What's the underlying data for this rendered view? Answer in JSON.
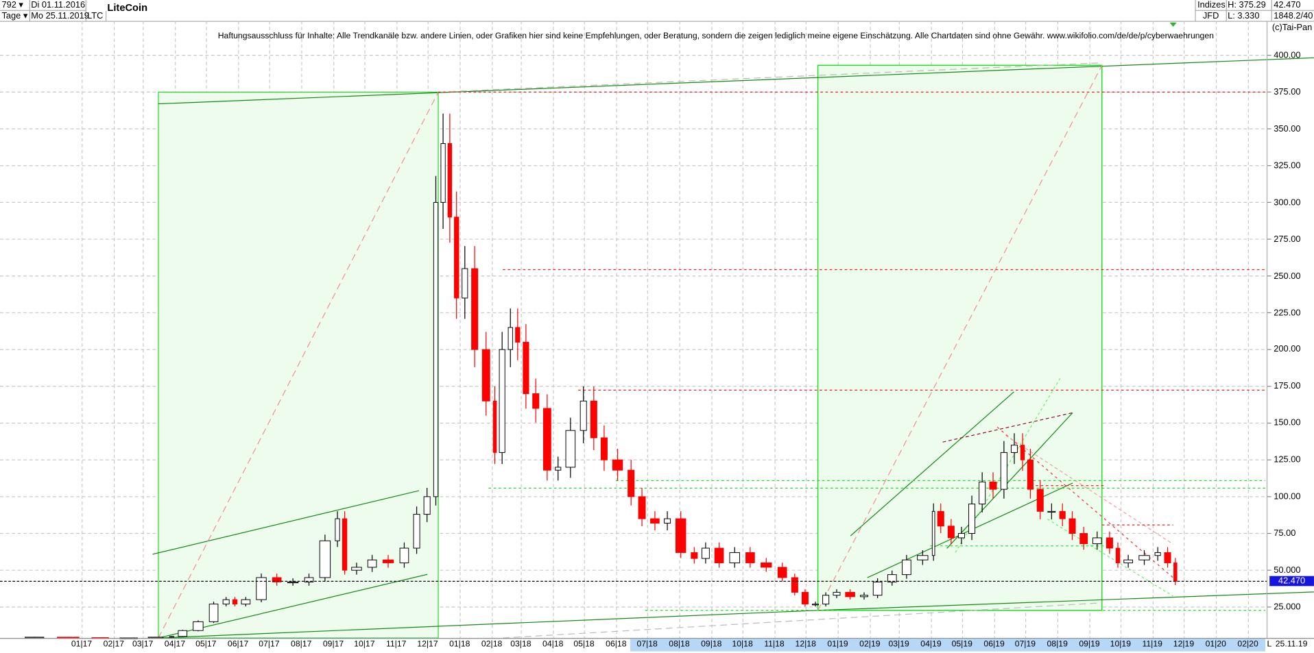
{
  "header": {
    "count_select": "792 ▾",
    "range_unit_select": "Tage ▾",
    "start_date": "Di 01.11.2016",
    "end_date": "Mo 25.11.2019",
    "symbol": "LTC",
    "title": "LiteCoin",
    "market": "Indizes",
    "broker": "JFD",
    "high": "H: 375.29",
    "low": "L: 3.330",
    "last": "42.470",
    "extra": "1848.2/40"
  },
  "disclaimer": "Haftungsausschluss für Inhalte: Alle Trendkanäle bzw. andere Linien, oder Grafiken hier sind keine Empfehlungen, oder Beratung, sondern die zeigen lediglich meine eigene Einschätzung. Alle Chartdaten sind ohne Gewähr.  www.wikifolio.com/de/de/p/cyberwaehrungen",
  "copyright": "(c)Tai-Pan",
  "axis_end_marker": "L",
  "axis_end_date": "25.11.19",
  "colors": {
    "up": "#000000",
    "down": "#ff0000",
    "box_fill": "#eefcee",
    "box_stroke": "#22dd22",
    "trend": "#138a13",
    "highlight": "#b7d7f7",
    "current_label": "#1515e0"
  },
  "chart_data": {
    "type": "candlestick",
    "title": "LiteCoin",
    "ylim": [
      0,
      410
    ],
    "grid": true,
    "current_value": "42.470",
    "ytick_labels": [
      "400.00",
      "375.00",
      "350.00",
      "325.00",
      "300.00",
      "275.00",
      "250.00",
      "225.00",
      "200.00",
      "175.00",
      "150.00",
      "125.00",
      "100.00",
      "75.00",
      "50.000",
      "25.000"
    ],
    "ytick_values": [
      400,
      375,
      350,
      325,
      300,
      275,
      250,
      225,
      200,
      175,
      150,
      125,
      100,
      75,
      50,
      25
    ],
    "xtick_labels": [
      "01|17",
      "02|17",
      "03|17",
      "04|17",
      "05|17",
      "06|17",
      "07|17",
      "08|17",
      "09|17",
      "10|17",
      "11|17",
      "12|17",
      "01|18",
      "02|18",
      "03|18",
      "04|18",
      "05|18",
      "06|18",
      "07|18",
      "08|18",
      "09|18",
      "10|18",
      "11|18",
      "12|18",
      "01|19",
      "02|19",
      "03|19",
      "04|19",
      "05|19",
      "06|19",
      "07|19",
      "08|19",
      "09|19",
      "10|19",
      "11|19",
      "12|19",
      "01|20",
      "02|20"
    ],
    "xtick_dates": [
      "2017-01-01",
      "2017-02-01",
      "2017-03-01",
      "2017-04-01",
      "2017-05-01",
      "2017-06-01",
      "2017-07-01",
      "2017-08-01",
      "2017-09-01",
      "2017-10-01",
      "2017-11-01",
      "2017-12-01",
      "2018-01-01",
      "2018-02-01",
      "2018-03-01",
      "2018-04-01",
      "2018-05-01",
      "2018-06-01",
      "2018-07-01",
      "2018-08-01",
      "2018-09-01",
      "2018-10-01",
      "2018-11-01",
      "2018-12-01",
      "2019-01-01",
      "2019-02-01",
      "2019-03-01",
      "2019-04-01",
      "2019-05-01",
      "2019-06-01",
      "2019-07-01",
      "2019-08-01",
      "2019-09-01",
      "2019-10-01",
      "2019-11-01",
      "2019-12-01",
      "2020-01-01",
      "2020-02-01"
    ],
    "dates": [
      "2016-11-01",
      "2016-12-01",
      "2017-01-05",
      "2017-02-01",
      "2017-03-01",
      "2017-03-25",
      "2017-04-01",
      "2017-04-15",
      "2017-05-01",
      "2017-05-15",
      "2017-05-25",
      "2017-06-01",
      "2017-06-15",
      "2017-07-01",
      "2017-07-15",
      "2017-08-01",
      "2017-08-15",
      "2017-09-01",
      "2017-09-08",
      "2017-09-15",
      "2017-10-01",
      "2017-10-15",
      "2017-11-01",
      "2017-11-15",
      "2017-11-25",
      "2017-12-05",
      "2017-12-12",
      "2017-12-19",
      "2017-12-25",
      "2018-01-01",
      "2018-01-10",
      "2018-01-20",
      "2018-02-01",
      "2018-02-06",
      "2018-02-15",
      "2018-02-22",
      "2018-03-01",
      "2018-03-10",
      "2018-03-20",
      "2018-04-01",
      "2018-04-10",
      "2018-04-25",
      "2018-05-05",
      "2018-05-15",
      "2018-05-25",
      "2018-06-10",
      "2018-06-20",
      "2018-07-01",
      "2018-07-15",
      "2018-07-25",
      "2018-08-10",
      "2018-08-20",
      "2018-09-01",
      "2018-09-15",
      "2018-10-01",
      "2018-10-15",
      "2018-11-01",
      "2018-11-15",
      "2018-11-25",
      "2018-12-05",
      "2018-12-15",
      "2018-12-25",
      "2019-01-05",
      "2019-01-20",
      "2019-02-01",
      "2019-02-15",
      "2019-03-01",
      "2019-03-15",
      "2019-04-01",
      "2019-04-05",
      "2019-04-15",
      "2019-04-25",
      "2019-05-05",
      "2019-05-15",
      "2019-05-25",
      "2019-06-05",
      "2019-06-15",
      "2019-06-25",
      "2019-07-01",
      "2019-07-10",
      "2019-07-20",
      "2019-08-01",
      "2019-08-10",
      "2019-08-20",
      "2019-09-01",
      "2019-09-15",
      "2019-09-25",
      "2019-10-01",
      "2019-10-15",
      "2019-11-01",
      "2019-11-10",
      "2019-11-20",
      "2019-11-25"
    ],
    "close": [
      4,
      4.5,
      4.2,
      3.9,
      4,
      4.5,
      5,
      9,
      15,
      27,
      30,
      27,
      30,
      45,
      42,
      42,
      45,
      70,
      85,
      50,
      52,
      57,
      55,
      65,
      88,
      100,
      300,
      340,
      290,
      235,
      255,
      200,
      165,
      130,
      200,
      215,
      205,
      170,
      160,
      118,
      120,
      145,
      165,
      140,
      125,
      118,
      100,
      85,
      82,
      85,
      62,
      58,
      65,
      55,
      62,
      55,
      52,
      45,
      35,
      27,
      27,
      33,
      35,
      32,
      33,
      42,
      47,
      57,
      60,
      90,
      80,
      72,
      75,
      95,
      110,
      105,
      130,
      135,
      125,
      105,
      90,
      90,
      85,
      75,
      68,
      72,
      65,
      55,
      57,
      60,
      62,
      55,
      42.47
    ]
  }
}
